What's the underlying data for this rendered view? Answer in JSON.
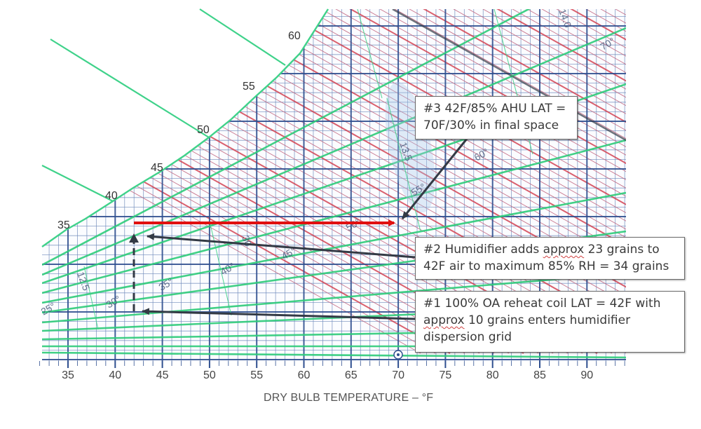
{
  "chart_data": {
    "type": "psychrometric",
    "title": "",
    "xlabel": "DRY BULB TEMPERATURE – °F",
    "ylabel": "",
    "x_ticks": [
      35,
      40,
      45,
      50,
      55,
      60,
      65,
      70,
      75,
      80,
      85,
      90
    ],
    "xlim": [
      32,
      94
    ],
    "grid": true,
    "saturation_curve_labels": [
      35,
      40,
      45,
      50,
      55,
      60
    ],
    "wet_bulb_labels": [
      "25°",
      "30°",
      "35°",
      "40°",
      "45°",
      "50°",
      "55°",
      "60°",
      "70°"
    ],
    "enthalpy_scale_labels": [
      "12.5",
      "13.5",
      "14.0"
    ],
    "volume_label_midchart": "30",
    "process": [
      {
        "step": 1,
        "from": {
          "db_f": 42,
          "grains": 10
        },
        "to": {
          "db_f": 42,
          "grains": 34
        },
        "style": "dashed-arrow-up",
        "color": "#333a45"
      },
      {
        "step": 2,
        "point": {
          "db_f": 42,
          "rh_pct": 85,
          "grains": 34
        }
      },
      {
        "step": 3,
        "from": {
          "db_f": 42,
          "rh_pct": 85
        },
        "to": {
          "db_f": 70,
          "rh_pct": 30
        },
        "style": "solid-arrow-right",
        "color": "#e01010"
      }
    ],
    "marker": {
      "db_f": 70,
      "symbol": "circled-dot",
      "position": "bottom-axis"
    }
  },
  "callouts": {
    "c3": {
      "line1": "#3 42F/85% AHU LAT =",
      "line2": "70F/30% in final space"
    },
    "c2": {
      "line1_pre": "#2 Humidifier adds ",
      "line1_wavy": "approx",
      "line1_post": " 23 grains to",
      "line2": "42F air to maximum 85% RH = 34 grains"
    },
    "c1": {
      "line1": "#1 100% OA reheat coil LAT = 42F with",
      "line2_wavy": "approx",
      "line2_post": " 10 grains enters humidifier",
      "line3": "dispersion grid"
    }
  },
  "axis": {
    "title": "DRY BULB TEMPERATURE – °F"
  },
  "colors": {
    "grid_blue": "#2f4f8f",
    "rh_green": "#2ecc7a",
    "wetbulb_red": "#d23a4a",
    "process_red": "#e01010",
    "arrow_dark": "#333a45"
  }
}
